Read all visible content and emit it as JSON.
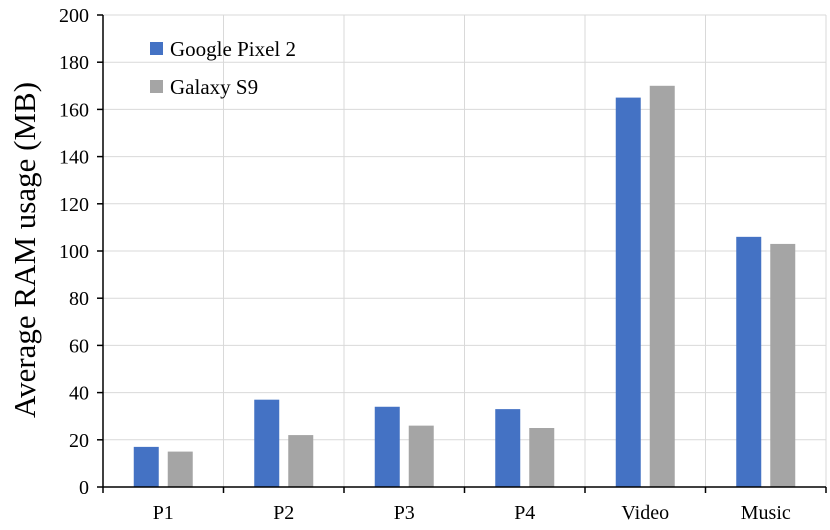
{
  "chart_data": {
    "type": "bar",
    "title": "",
    "xlabel": "",
    "ylabel": "Average RAM usage (MB)",
    "ylim": [
      0,
      200
    ],
    "yticks": [
      0,
      20,
      40,
      60,
      80,
      100,
      120,
      140,
      160,
      180,
      200
    ],
    "grid": true,
    "legend_position": "top-left",
    "categories": [
      "P1",
      "P2",
      "P3",
      "P4",
      "Video",
      "Music"
    ],
    "series": [
      {
        "name": "Google Pixel 2",
        "color": "#4472c4",
        "values": [
          17,
          37,
          34,
          33,
          165,
          106
        ]
      },
      {
        "name": "Galaxy S9",
        "color": "#a5a5a5",
        "values": [
          15,
          22,
          26,
          25,
          170,
          103
        ]
      }
    ]
  }
}
